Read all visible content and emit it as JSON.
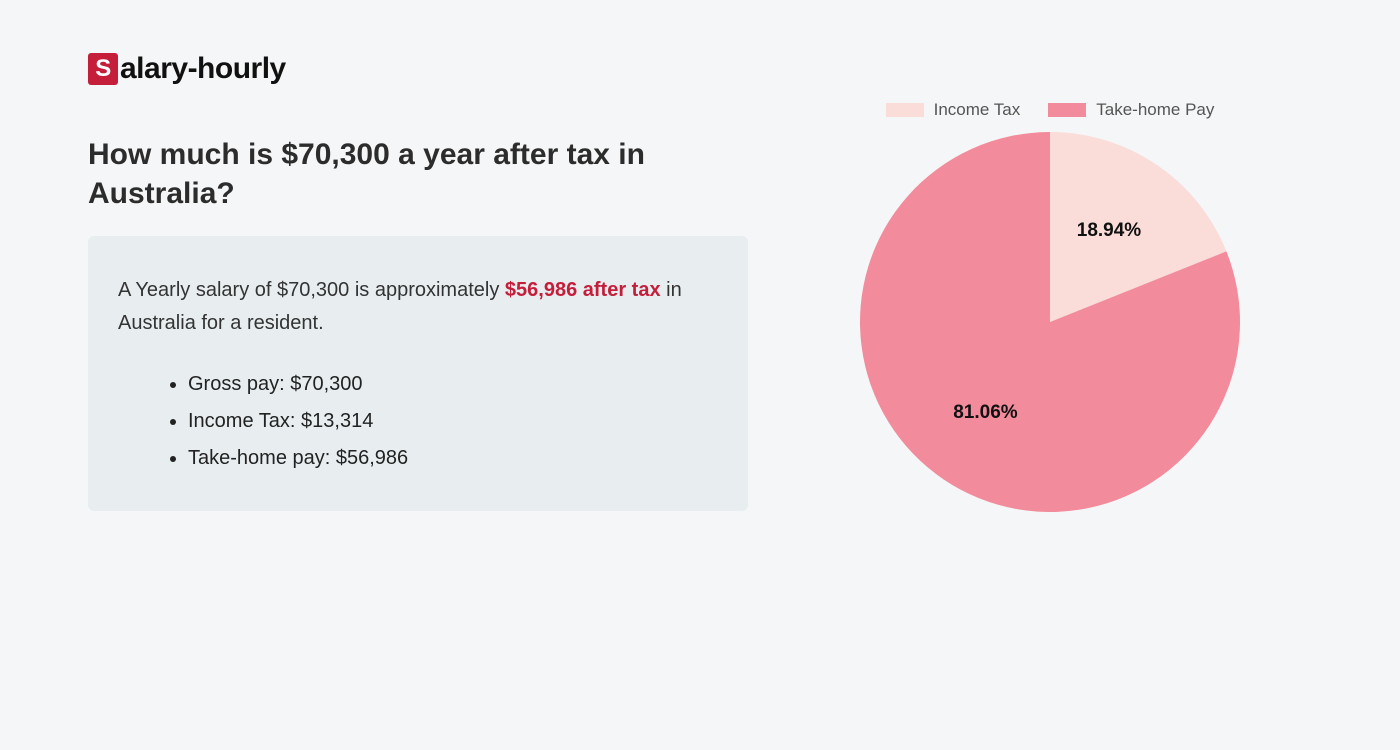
{
  "logo": {
    "badge_letter": "S",
    "text": "alary-hourly"
  },
  "title": "How much is $70,300 a year after tax in Australia?",
  "summary": {
    "prefix": "A Yearly salary of $70,300 is approximately ",
    "highlight": "$56,986 after tax",
    "suffix": " in Australia for a resident."
  },
  "bullets": [
    "Gross pay: $70,300",
    "Income Tax: $13,314",
    "Take-home pay: $56,986"
  ],
  "chart": {
    "type": "pie",
    "slices": [
      {
        "label": "Income Tax",
        "value": 18.94,
        "display": "18.94%",
        "color": "#fadcd9"
      },
      {
        "label": "Take-home Pay",
        "value": 81.06,
        "display": "81.06%",
        "color": "#f28b9b"
      }
    ],
    "radius": 190,
    "start_angle_deg": 0,
    "background_color": "#f5f6f7",
    "legend_swatch_width": 38,
    "legend_swatch_height": 14,
    "label_fontsize": 19,
    "label_fontweight": 700,
    "label_color": "#111111",
    "legend_fontsize": 17,
    "legend_color": "#555555"
  },
  "colors": {
    "page_bg": "#f5f6f7",
    "box_bg": "#e8eef0",
    "accent": "#c41e3a",
    "text_dark": "#2c2c2c"
  }
}
